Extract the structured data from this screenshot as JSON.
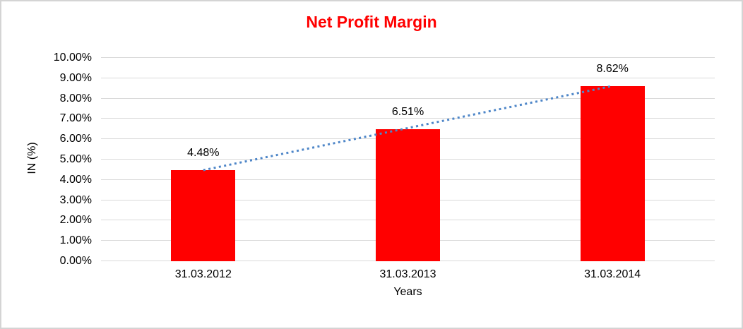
{
  "chart_data": {
    "type": "bar",
    "title": "Net Profit Margin",
    "xlabel": "Years",
    "ylabel": "IN (%)",
    "categories": [
      "31.03.2012",
      "31.03.2013",
      "31.03.2014"
    ],
    "values": [
      4.48,
      6.51,
      8.62
    ],
    "data_labels": [
      "4.48%",
      "6.51%",
      "8.62%"
    ],
    "ylim": [
      0,
      10
    ],
    "ytick_step": 1,
    "ytick_labels": [
      "0.00%",
      "1.00%",
      "2.00%",
      "3.00%",
      "4.00%",
      "5.00%",
      "6.00%",
      "7.00%",
      "8.00%",
      "9.00%",
      "10.00%"
    ],
    "grid": "horizontal",
    "legend": "none",
    "trendline": {
      "type": "linear",
      "style": "dotted"
    },
    "colors": {
      "bar": "#ff0000",
      "title": "#ff0000",
      "trendline": "#4e86c8",
      "gridline": "#d9d9d9",
      "axis_text": "#000000",
      "background": "#ffffff",
      "border": "#d4d4d4"
    }
  }
}
